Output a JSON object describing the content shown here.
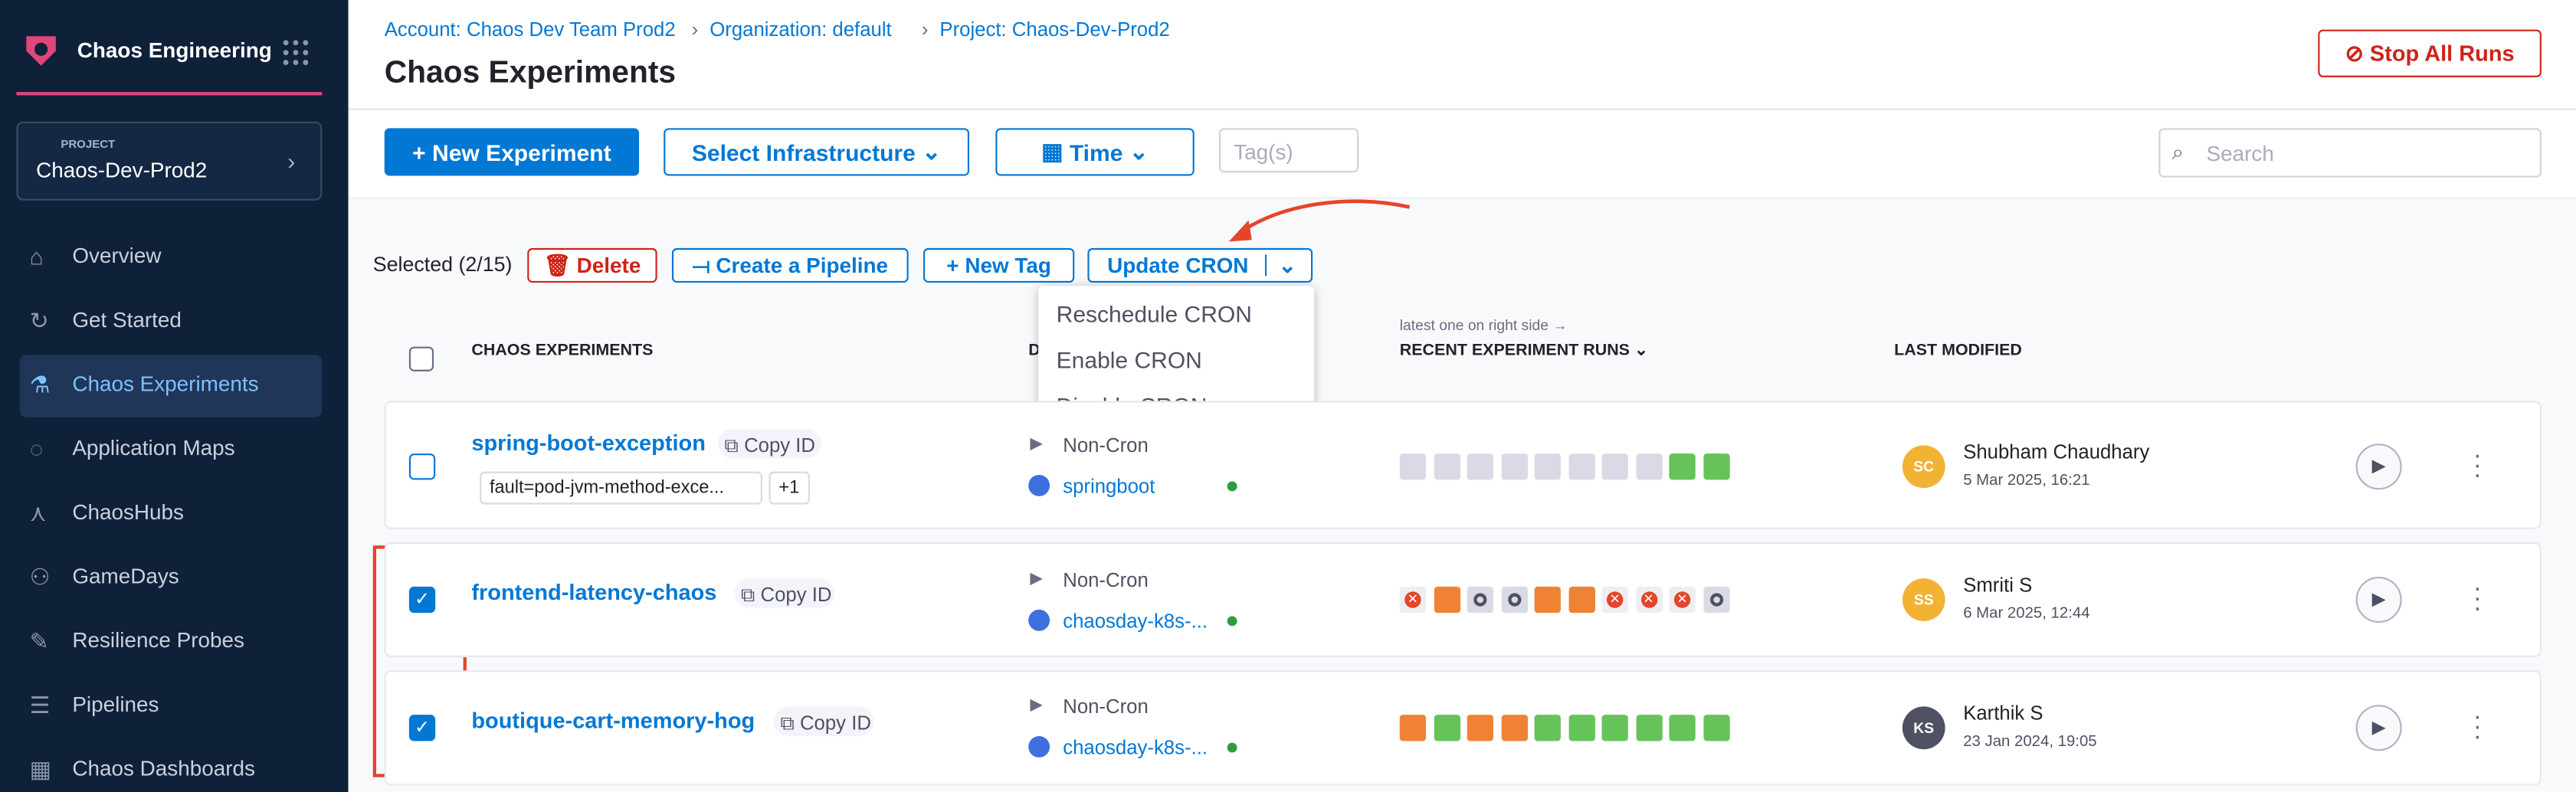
{
  "sidebar": {
    "module": "Chaos Engineering",
    "project_label": "PROJECT",
    "project": "Chaos-Dev-Prod2",
    "nav": [
      "Overview",
      "Get Started",
      "Chaos Experiments",
      "Application Maps",
      "ChaosHubs",
      "GameDays",
      "Resilience Probes",
      "Pipelines",
      "Chaos Dashboards"
    ]
  },
  "header": {
    "breadcrumbs": [
      "Account: Chaos Dev Team Prod2",
      "Organization: default",
      "Project: Chaos-Dev-Prod2"
    ],
    "title": "Chaos Experiments",
    "stop_button": "Stop All Runs"
  },
  "toolbar": {
    "new_experiment": "New Experiment",
    "select_infrastructure": "Select Infrastructure",
    "time": "Time",
    "tags_placeholder": "Tag(s)",
    "search_placeholder": "Search"
  },
  "bulk_actions": {
    "selected": "Selected (2/15)",
    "delete": "Delete",
    "create_pipeline": "Create a Pipeline",
    "new_tag": "New Tag",
    "update_cron": "Update CRON"
  },
  "cron_menu": [
    "Reschedule CRON",
    "Enable CRON",
    "Disable CRON"
  ],
  "table": {
    "columns": [
      "CHAOS EXPERIMENTS",
      "D",
      "RECENT EXPERIMENT RUNS",
      "LAST MODIFIED"
    ],
    "runs_hint": "latest one on right side →",
    "rows": [
      {
        "name": "spring-boot-exception",
        "copy_id": "Copy ID",
        "tags": [
          "fault=pod-jvm-method-exce...",
          "+1"
        ],
        "schedule": "Non-Cron",
        "infrastructure": "springboot",
        "initials": "SC",
        "user": "Shubham Chaudhary",
        "date": "5 Mar 2025, 16:21"
      },
      {
        "name": "frontend-latency-chaos",
        "copy_id": "Copy ID",
        "schedule": "Non-Cron",
        "infrastructure": "chaosday-k8s-...",
        "initials": "SS",
        "user": "Smriti S",
        "date": "6 Mar 2025, 12:44"
      },
      {
        "name": "boutique-cart-memory-hog",
        "copy_id": "Copy ID",
        "schedule": "Non-Cron",
        "infrastructure": "chaosday-k8s-...",
        "initials": "KS",
        "user": "Karthik S",
        "date": "23 Jan 2024, 19:05"
      }
    ]
  }
}
